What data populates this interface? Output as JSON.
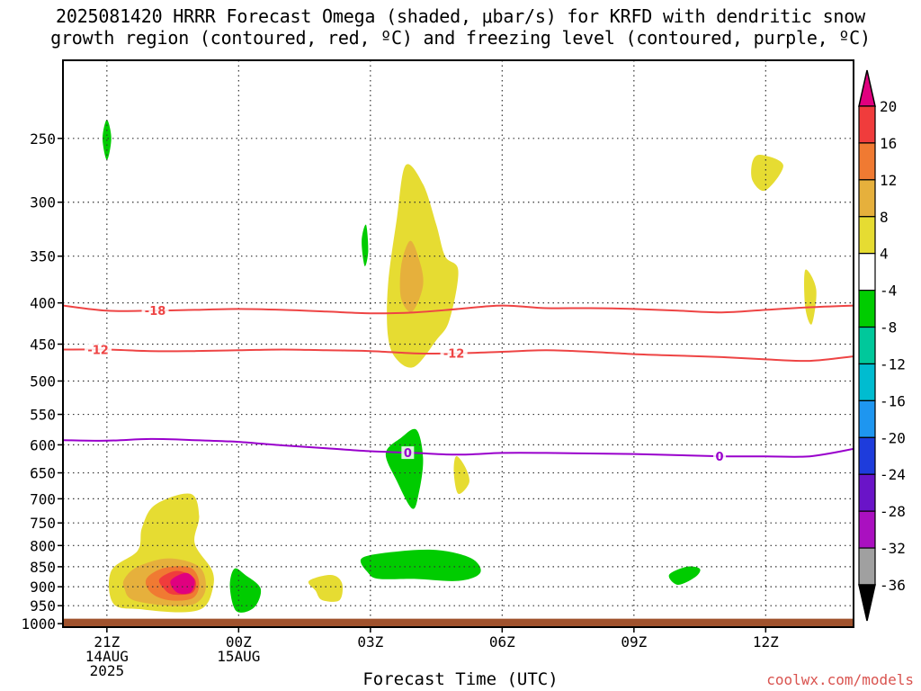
{
  "title": "2025081420 HRRR Forecast Omega (shaded, μbar/s) for KRFD with dendritic snow\ngrowth region (contoured, red, ºC) and freezing level (contoured, purple, ºC)",
  "credit": "coolwx.com/models",
  "chart_data": {
    "type": "time-height cross section",
    "xlabel": "Forecast Time (UTC)",
    "x_ticks": [
      {
        "hour": 1,
        "lines": [
          "21Z",
          "14AUG",
          "2025"
        ]
      },
      {
        "hour": 4,
        "lines": [
          "00Z",
          "15AUG"
        ]
      },
      {
        "hour": 7,
        "lines": [
          "03Z"
        ]
      },
      {
        "hour": 10,
        "lines": [
          "06Z"
        ]
      },
      {
        "hour": 13,
        "lines": [
          "09Z"
        ]
      },
      {
        "hour": 16,
        "lines": [
          "12Z"
        ]
      }
    ],
    "xlim_hours": [
      0,
      18
    ],
    "y_scale": "log-pressure (hPa), inverted",
    "y_ticks": [
      250,
      300,
      350,
      400,
      450,
      500,
      550,
      600,
      650,
      700,
      750,
      800,
      850,
      900,
      950,
      1000
    ],
    "ylim": [
      1010,
      200
    ],
    "colorbar": {
      "levels": [
        20,
        16,
        12,
        8,
        4,
        -4,
        -8,
        -12,
        -16,
        -20,
        -24,
        -28,
        -32,
        -36
      ],
      "bins": [
        {
          "range": ">20",
          "color": "#e0007f"
        },
        {
          "range": "16 to 20",
          "color": "#f03c3c"
        },
        {
          "range": "12 to 16",
          "color": "#f07a32"
        },
        {
          "range": "8 to 12",
          "color": "#e6b03c"
        },
        {
          "range": "4 to 8",
          "color": "#e6dc32"
        },
        {
          "range": "-4 to 4",
          "color": "#ffffff"
        },
        {
          "range": "-8 to -4",
          "color": "#00cc00"
        },
        {
          "range": "-12 to -8",
          "color": "#00c89b"
        },
        {
          "range": "-16 to -12",
          "color": "#00bcd0"
        },
        {
          "range": "-20 to -16",
          "color": "#1e96f0"
        },
        {
          "range": "-24 to -20",
          "color": "#1e3cdc"
        },
        {
          "range": "-28 to -24",
          "color": "#6a14c8"
        },
        {
          "range": "-32 to -28",
          "color": "#aa10c0"
        },
        {
          "range": "-36 to -32",
          "color": "#a0a0a0"
        },
        {
          "range": "<-36",
          "color": "#000000"
        }
      ]
    },
    "contours": [
      {
        "name": "-18",
        "color": "#ee4444",
        "points": [
          [
            0,
            403
          ],
          [
            1,
            409
          ],
          [
            2,
            409
          ],
          [
            3,
            408
          ],
          [
            4,
            407
          ],
          [
            5,
            408
          ],
          [
            6,
            410
          ],
          [
            7,
            412
          ],
          [
            8,
            411
          ],
          [
            9,
            407
          ],
          [
            10,
            403
          ],
          [
            11,
            406
          ],
          [
            12,
            406
          ],
          [
            13,
            407
          ],
          [
            14,
            409
          ],
          [
            15,
            411
          ],
          [
            16,
            408
          ],
          [
            17,
            405
          ],
          [
            18,
            403
          ]
        ],
        "labels": [
          {
            "hour": 2.1,
            "text": "-18"
          }
        ]
      },
      {
        "name": "-12",
        "color": "#ee4444",
        "points": [
          [
            0,
            457
          ],
          [
            1,
            457
          ],
          [
            2,
            459
          ],
          [
            3,
            459
          ],
          [
            4,
            458
          ],
          [
            5,
            457
          ],
          [
            6,
            458
          ],
          [
            7,
            459
          ],
          [
            8,
            462
          ],
          [
            9,
            462
          ],
          [
            10,
            460
          ],
          [
            11,
            458
          ],
          [
            12,
            460
          ],
          [
            13,
            463
          ],
          [
            14,
            465
          ],
          [
            15,
            467
          ],
          [
            16,
            470
          ],
          [
            17,
            472
          ],
          [
            18,
            466
          ]
        ],
        "labels": [
          {
            "hour": 0.8,
            "text": "-12"
          },
          {
            "hour": 8.9,
            "text": "-12"
          }
        ]
      },
      {
        "name": "0",
        "color": "#9900cc",
        "points": [
          [
            0,
            592
          ],
          [
            1,
            593
          ],
          [
            2,
            590
          ],
          [
            3,
            592
          ],
          [
            4,
            595
          ],
          [
            5,
            601
          ],
          [
            6,
            606
          ],
          [
            7,
            611
          ],
          [
            8,
            614
          ],
          [
            9,
            617
          ],
          [
            10,
            614
          ],
          [
            11,
            614
          ],
          [
            12,
            615
          ],
          [
            13,
            616
          ],
          [
            14,
            618
          ],
          [
            15,
            620
          ],
          [
            16,
            620
          ],
          [
            17,
            620
          ],
          [
            18,
            607
          ]
        ],
        "labels": [
          {
            "hour": 7.85,
            "text": "0"
          },
          {
            "hour": 14.95,
            "text": "0"
          }
        ]
      }
    ],
    "shaded_regions": [
      {
        "bin": "4 to 8",
        "points": [
          [
            1.1,
            860
          ],
          [
            1.7,
            812
          ],
          [
            1.8,
            760
          ],
          [
            2.1,
            712
          ],
          [
            2.9,
            690
          ],
          [
            3.1,
            735
          ],
          [
            3.0,
            795
          ],
          [
            3.4,
            860
          ],
          [
            3.4,
            910
          ],
          [
            3.2,
            955
          ],
          [
            2.7,
            968
          ],
          [
            1.8,
            960
          ],
          [
            1.15,
            945
          ]
        ]
      },
      {
        "bin": "8 to 12",
        "points": [
          [
            1.4,
            880
          ],
          [
            1.7,
            850
          ],
          [
            2.4,
            830
          ],
          [
            3.1,
            850
          ],
          [
            3.25,
            905
          ],
          [
            3.0,
            945
          ],
          [
            2.4,
            950
          ],
          [
            1.6,
            935
          ],
          [
            1.4,
            905
          ]
        ]
      },
      {
        "bin": "12 to 16",
        "points": [
          [
            1.9,
            880
          ],
          [
            2.3,
            853
          ],
          [
            2.9,
            852
          ],
          [
            3.1,
            890
          ],
          [
            2.95,
            930
          ],
          [
            2.4,
            935
          ],
          [
            2.0,
            915
          ]
        ]
      },
      {
        "bin": "16 to 20",
        "points": [
          [
            2.2,
            880
          ],
          [
            2.6,
            860
          ],
          [
            3.0,
            880
          ],
          [
            2.95,
            915
          ],
          [
            2.5,
            920
          ],
          [
            2.3,
            905
          ]
        ]
      },
      {
        "bin": ">20",
        "points": [
          [
            2.45,
            885
          ],
          [
            2.8,
            865
          ],
          [
            3.0,
            885
          ],
          [
            2.9,
            915
          ],
          [
            2.6,
            915
          ]
        ]
      },
      {
        "bin": "4 to 8",
        "points": [
          [
            5.6,
            885
          ],
          [
            6.1,
            870
          ],
          [
            6.35,
            890
          ],
          [
            6.3,
            935
          ],
          [
            5.9,
            935
          ],
          [
            5.75,
            910
          ]
        ]
      },
      {
        "bin": "4 to 8",
        "points": [
          [
            7.4,
            380
          ],
          [
            7.6,
            315
          ],
          [
            7.8,
            270
          ],
          [
            8.2,
            285
          ],
          [
            8.5,
            320
          ],
          [
            8.7,
            350
          ],
          [
            9.0,
            365
          ],
          [
            8.8,
            420
          ],
          [
            8.5,
            445
          ],
          [
            8.0,
            480
          ],
          [
            7.6,
            470
          ],
          [
            7.4,
            440
          ]
        ]
      },
      {
        "bin": "8 to 12",
        "points": [
          [
            7.7,
            360
          ],
          [
            7.9,
            335
          ],
          [
            8.1,
            352
          ],
          [
            8.2,
            380
          ],
          [
            7.95,
            410
          ],
          [
            7.7,
            395
          ]
        ]
      },
      {
        "bin": "4 to 8",
        "points": [
          [
            8.95,
            620
          ],
          [
            9.15,
            638
          ],
          [
            9.25,
            668
          ],
          [
            9.0,
            690
          ],
          [
            8.9,
            650
          ]
        ]
      },
      {
        "bin": "4 to 8",
        "points": [
          [
            15.7,
            267
          ],
          [
            15.9,
            262
          ],
          [
            16.4,
            270
          ],
          [
            16.0,
            290
          ],
          [
            15.7,
            282
          ]
        ]
      },
      {
        "bin": "4 to 8",
        "points": [
          [
            16.9,
            364
          ],
          [
            17.15,
            385
          ],
          [
            17.05,
            425
          ],
          [
            16.9,
            405
          ]
        ]
      },
      {
        "bin": "-8 to -4",
        "points": [
          [
            0.9,
            250
          ],
          [
            1.0,
            237
          ],
          [
            1.1,
            250
          ],
          [
            1.0,
            266
          ]
        ]
      },
      {
        "bin": "-8 to -4",
        "points": [
          [
            6.8,
            335
          ],
          [
            6.9,
            320
          ],
          [
            6.95,
            345
          ],
          [
            6.87,
            360
          ]
        ]
      },
      {
        "bin": "-8 to -4",
        "points": [
          [
            3.8,
            900
          ],
          [
            3.9,
            855
          ],
          [
            4.15,
            870
          ],
          [
            4.5,
            905
          ],
          [
            4.35,
            955
          ],
          [
            3.95,
            965
          ]
        ]
      },
      {
        "bin": "-8 to -4",
        "points": [
          [
            7.35,
            615
          ],
          [
            7.7,
            588
          ],
          [
            8.05,
            575
          ],
          [
            8.2,
            625
          ],
          [
            8.1,
            690
          ],
          [
            7.95,
            720
          ],
          [
            7.6,
            665
          ]
        ]
      },
      {
        "bin": "-8 to -4",
        "points": [
          [
            6.8,
            830
          ],
          [
            7.5,
            815
          ],
          [
            8.5,
            810
          ],
          [
            9.3,
            830
          ],
          [
            9.5,
            865
          ],
          [
            9.0,
            885
          ],
          [
            8.0,
            880
          ],
          [
            7.2,
            880
          ],
          [
            6.95,
            865
          ]
        ]
      },
      {
        "bin": "-8 to -4",
        "points": [
          [
            13.8,
            870
          ],
          [
            14.2,
            850
          ],
          [
            14.5,
            855
          ],
          [
            14.4,
            875
          ],
          [
            14.0,
            895
          ]
        ]
      }
    ],
    "terrain": {
      "color": "#a0522d",
      "top_hPa": 986
    }
  }
}
